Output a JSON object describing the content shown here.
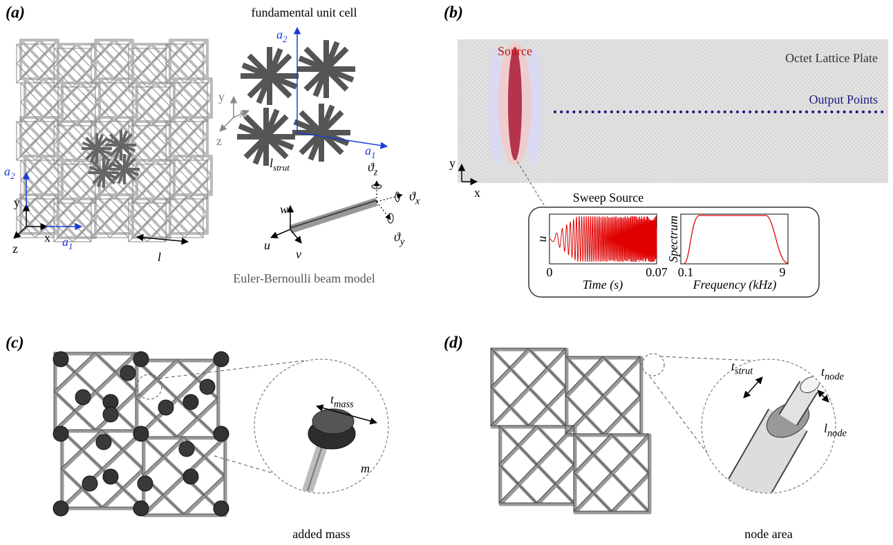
{
  "panel_a": {
    "label": "(a)",
    "title": "fundamental unit cell",
    "lattice_a2": {
      "main": "a",
      "sub": "2"
    },
    "lattice_a1": {
      "main": "a",
      "sub": "1"
    },
    "axis_y": "y",
    "axis_x": "x",
    "axis_z": "z",
    "period": "l",
    "cell_a2": {
      "main": "a",
      "sub": "2"
    },
    "cell_a1": {
      "main": "a",
      "sub": "1"
    },
    "cell_y": "y",
    "cell_x": "x",
    "cell_z": "z",
    "strut": {
      "main": "l",
      "sub": "strut"
    },
    "theta_z": {
      "main": "ϑ",
      "sub": "z"
    },
    "theta_x": {
      "main": "ϑ",
      "sub": "x"
    },
    "theta_y": {
      "main": "ϑ",
      "sub": "y"
    },
    "beam_w": "w",
    "beam_u": "u",
    "beam_v": "v",
    "caption": "Euler-Bernoulli beam model"
  },
  "panel_b": {
    "label": "(b)",
    "source": "Source",
    "plate": "Octet Lattice Plate",
    "output": "Output Points",
    "axis_y": "y",
    "axis_x": "x",
    "inset_title": "Sweep Source",
    "time_plot": {
      "ylabel": "u",
      "xticks": [
        0,
        0.07
      ],
      "xlabel": "Time (s)"
    },
    "spectrum_plot": {
      "ylabel": "Spectrum",
      "xticks": [
        0.1,
        9
      ],
      "xlabel": "Frequency (kHz)"
    }
  },
  "panel_c": {
    "label": "(c)",
    "t_mass": {
      "main": "t",
      "sub": "mass"
    },
    "mass": "m",
    "caption": "added mass"
  },
  "panel_d": {
    "label": "(d)",
    "t_strut": {
      "main": "t",
      "sub": "strut"
    },
    "t_node": {
      "main": "t",
      "sub": "node"
    },
    "l_node": {
      "main": "l",
      "sub": "node"
    },
    "caption": "node area"
  }
}
